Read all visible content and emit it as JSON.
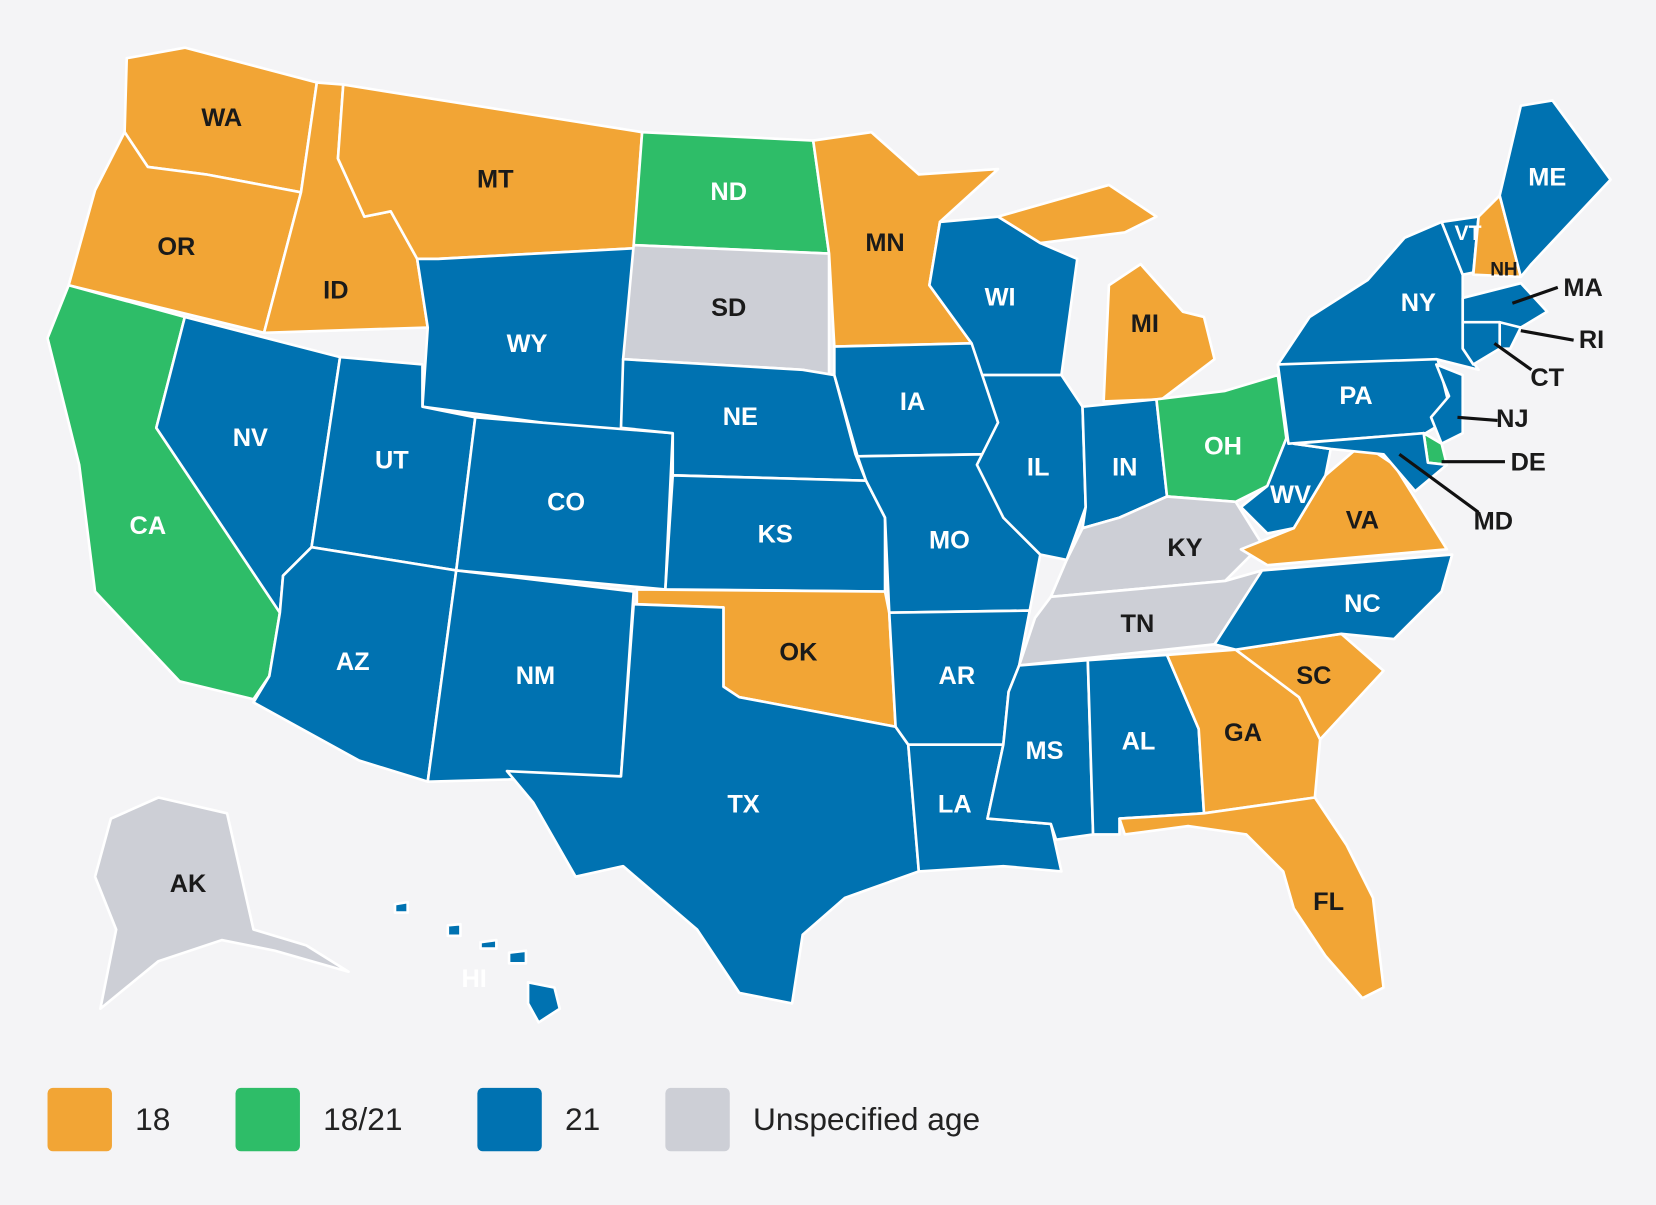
{
  "legend": [
    {
      "label": "18",
      "color": "#f2a535"
    },
    {
      "label": "18/21",
      "color": "#2ebd68"
    },
    {
      "label": "21",
      "color": "#0072b1"
    },
    {
      "label": "Unspecified age",
      "color": "#cdcfd6"
    }
  ],
  "states": [
    {
      "label": "WA",
      "category": "18"
    },
    {
      "label": "OR",
      "category": "18"
    },
    {
      "label": "CA",
      "category": "18/21"
    },
    {
      "label": "NV",
      "category": "21"
    },
    {
      "label": "ID",
      "category": "18"
    },
    {
      "label": "MT",
      "category": "18"
    },
    {
      "label": "WY",
      "category": "21"
    },
    {
      "label": "UT",
      "category": "21"
    },
    {
      "label": "AZ",
      "category": "21"
    },
    {
      "label": "CO",
      "category": "21"
    },
    {
      "label": "NM",
      "category": "21"
    },
    {
      "label": "ND",
      "category": "18/21"
    },
    {
      "label": "SD",
      "category": "Unspecified age"
    },
    {
      "label": "NE",
      "category": "21"
    },
    {
      "label": "KS",
      "category": "21"
    },
    {
      "label": "OK",
      "category": "18"
    },
    {
      "label": "TX",
      "category": "21"
    },
    {
      "label": "MN",
      "category": "18"
    },
    {
      "label": "IA",
      "category": "21"
    },
    {
      "label": "MO",
      "category": "21"
    },
    {
      "label": "AR",
      "category": "21"
    },
    {
      "label": "LA",
      "category": "21"
    },
    {
      "label": "WI",
      "category": "21"
    },
    {
      "label": "IL",
      "category": "21"
    },
    {
      "label": "MI",
      "category": "18"
    },
    {
      "label": "IN",
      "category": "21"
    },
    {
      "label": "OH",
      "category": "18/21"
    },
    {
      "label": "KY",
      "category": "Unspecified age"
    },
    {
      "label": "TN",
      "category": "Unspecified age"
    },
    {
      "label": "MS",
      "category": "21"
    },
    {
      "label": "AL",
      "category": "21"
    },
    {
      "label": "GA",
      "category": "18"
    },
    {
      "label": "FL",
      "category": "18"
    },
    {
      "label": "SC",
      "category": "18"
    },
    {
      "label": "NC",
      "category": "21"
    },
    {
      "label": "VA",
      "category": "18"
    },
    {
      "label": "WV",
      "category": "21"
    },
    {
      "label": "PA",
      "category": "21"
    },
    {
      "label": "NY",
      "category": "21"
    },
    {
      "label": "VT",
      "category": "21"
    },
    {
      "label": "NH",
      "category": "18"
    },
    {
      "label": "ME",
      "category": "21"
    },
    {
      "label": "MA",
      "category": "21"
    },
    {
      "label": "RI",
      "category": "21"
    },
    {
      "label": "CT",
      "category": "21"
    },
    {
      "label": "NJ",
      "category": "21"
    },
    {
      "label": "DE",
      "category": "18/21"
    },
    {
      "label": "MD",
      "category": "21"
    },
    {
      "label": "AK",
      "category": "Unspecified age"
    },
    {
      "label": "HI",
      "category": "21"
    }
  ]
}
